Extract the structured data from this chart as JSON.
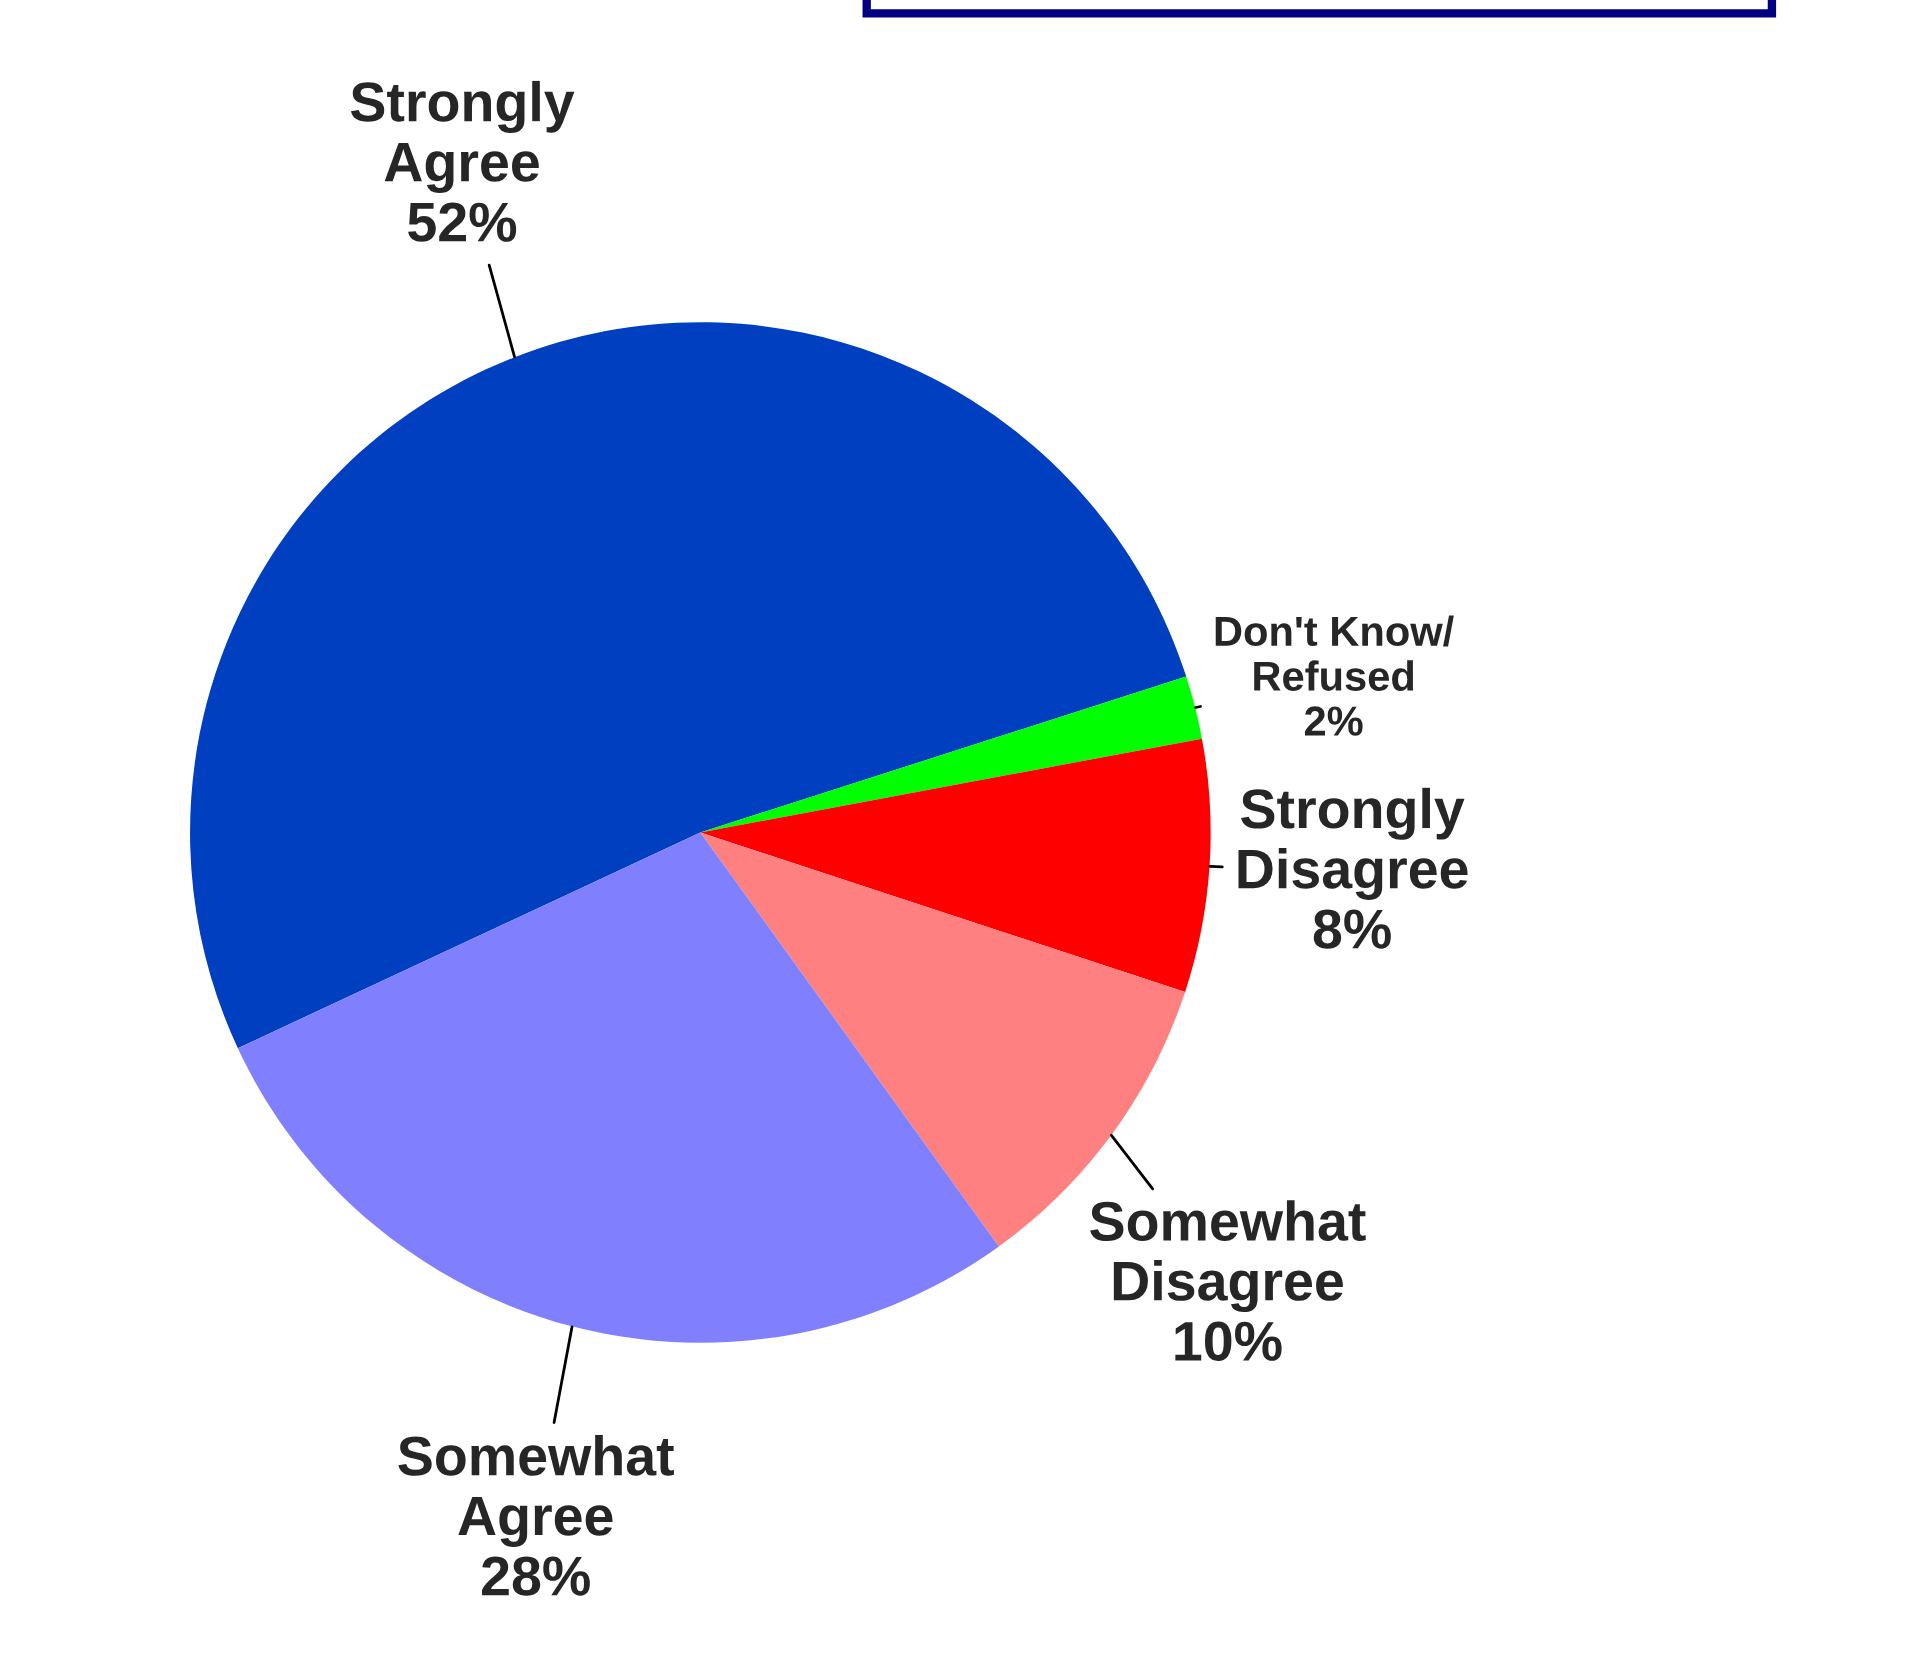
{
  "chart_data": {
    "type": "pie",
    "categories": [
      "Strongly\nAgree",
      "Don't Know/\nRefused",
      "Strongly\nDisagree",
      "Somewhat\nDisagree",
      "Somewhat\nAgree"
    ],
    "values": [
      52,
      2,
      8,
      10,
      28
    ],
    "value_labels": [
      "52%",
      "2%",
      "8%",
      "10%",
      "28%"
    ],
    "colors": [
      "#0040c0",
      "#00ff00",
      "#ff0000",
      "#ff8080",
      "#8080ff"
    ],
    "legend": false
  }
}
